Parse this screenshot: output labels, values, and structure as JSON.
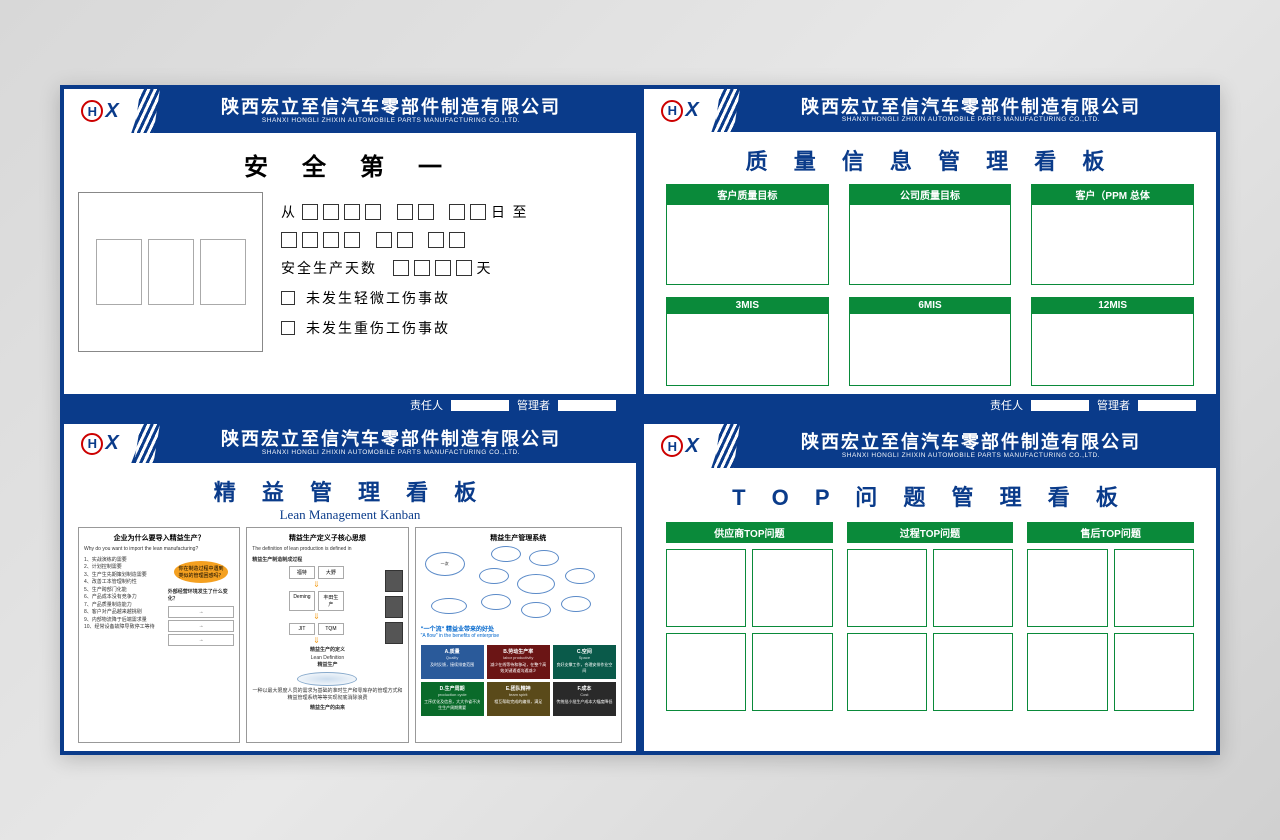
{
  "colors": {
    "primary_blue": "#0a3b8a",
    "green": "#0a8a3a",
    "orange": "#f4a020",
    "red": "#cc0000",
    "card_blue": "#2a5a9a",
    "card_dark_red": "#6b1515",
    "card_teal": "#0a5a4a",
    "card_green": "#0a6a2a",
    "card_brown": "#5a4a1a",
    "card_dark": "#2a2a2a"
  },
  "company": {
    "name_cn": "陕西宏立至信汽车零部件制造有限公司",
    "name_en": "SHANXI HONGLI ZHIXIN AUTOMOBILE PARTS MANUFACTURING CO.,LTD.",
    "logo_h": "H",
    "logo_x": "X"
  },
  "footer": {
    "label1": "责任人",
    "label2": "管理者"
  },
  "panel1": {
    "title": "安 全 第 一",
    "line1_prefix": "从",
    "line1_suffix": "日 至",
    "line3_prefix": "安全生产天数",
    "line3_suffix": "天",
    "check1": "未发生轻微工伤事故",
    "check2": "未发生重伤工伤事故"
  },
  "panel2": {
    "title": "质 量 信 息 管 理 看 板",
    "headers": [
      "客户质量目标",
      "公司质量目标",
      "客户（PPM  总体",
      "3MIS",
      "6MIS",
      "12MIS"
    ]
  },
  "panel3": {
    "title_cn": "精 益 管 理 看 板",
    "title_en": "Lean Management Kanban",
    "doc1": {
      "title": "企业为什么要导入精益生产？",
      "subtitle": "Why do you want to import the lean manufacturing?",
      "items": [
        "1、实战演练的需要",
        "2、计划控制需要",
        "3、生产生先期策划制造需要",
        "4、改善工本管理制约性",
        "5、生产跨部门化能",
        "6、产品成本没有竞争力",
        "7、产品质量制造能力",
        "8、客户对产品越来越挑剔",
        "9、内部物流降于后端需求量",
        "10、经常设备故障导致停工等待"
      ],
      "oval": "你在制造过程中遇到类似的管理困惑吗？",
      "box_title": "外部经营环境发生了什么变化？"
    },
    "doc2": {
      "title": "精益生产定义子核心思想",
      "subtitle": "The definition of lean production is defined in",
      "sec1": "精益生产制造制成过程",
      "names": [
        "福特",
        "大野",
        "Deming",
        "丰田生产"
      ],
      "items2": [
        "JIT",
        "TQM"
      ],
      "sec2": "精益生产的定义",
      "sec2_en": "Lean Definition",
      "sec3": "精益生产",
      "desc": "一种以最大限度人员的需求为基础的准时生产和零库存的管理方式和精益管理系统等等实现彻底消除浪费",
      "sec4": "精益生产的由来"
    },
    "doc3": {
      "title": "精益生产管理系统",
      "blue_title": "\"一个流\" 精益业带来的好处",
      "blue_sub": "\"A flow\" in the benefits of enterprise",
      "cards": [
        {
          "title": "A.质量",
          "sub": "Quality",
          "text": "及时反馈，接续排查范围",
          "color": "#2a5a9a"
        },
        {
          "title": "B.劳动生产率",
          "sub": "labor productivity",
          "text": "减少在线等待和移动，在整个高效关键通道沟通减少",
          "color": "#6b1515"
        },
        {
          "title": "C.空间",
          "sub": "Space",
          "text": "良好支撑工作，合理安排作业空间",
          "color": "#0a5a4a"
        },
        {
          "title": "D.生产周期",
          "sub": "production cycle",
          "text": "工序优化及信息，大大节省不决生生产周期需要",
          "color": "#0a6a2a"
        },
        {
          "title": "E.团队精神",
          "sub": "team spirit",
          "text": "相互帮助完成的编排，满足",
          "color": "#5a4a1a"
        },
        {
          "title": "F.成本",
          "sub": "Cost",
          "text": "传统批小批生产成本大幅度降低",
          "color": "#2a2a2a"
        }
      ]
    }
  },
  "panel4": {
    "title": "T O P 问 题 管 理 看 板",
    "headers": [
      "供应商TOP问题",
      "过程TOP问题",
      "售后TOP问题"
    ]
  }
}
